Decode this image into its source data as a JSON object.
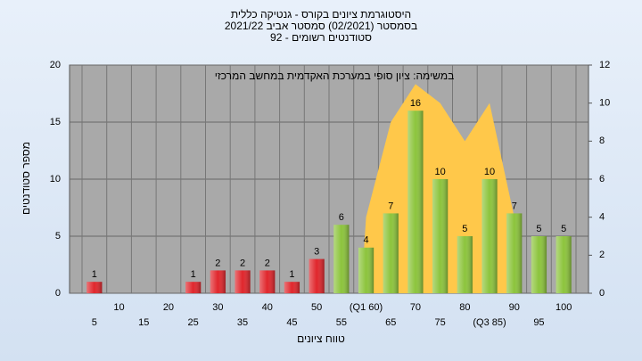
{
  "chart_data": {
    "type": "bar",
    "title": [
      "היסטוגרמת ציונים בקורס - גנטיקה כללית",
      "בסמסטר  (02/2021)  סמסטר אביב 2021/22",
      "סטודנטים רשומים - 92"
    ],
    "annotation": "במשימה: ציון סופי במערכת האקדמית במחשב המרכזי",
    "ylabel": "מספר סטודנטים",
    "xlabel": "טווח ציונים",
    "categories": [
      "5",
      "10",
      "15",
      "20",
      "25",
      "30",
      "35",
      "40",
      "45",
      "50",
      "55",
      "(Q1 60)",
      "65",
      "70",
      "75",
      "80",
      "(Q3 85)",
      "90",
      "95",
      "100"
    ],
    "values": [
      1,
      0,
      0,
      0,
      1,
      2,
      2,
      2,
      1,
      3,
      6,
      4,
      7,
      16,
      10,
      5,
      10,
      7,
      5,
      5
    ],
    "colors": [
      "#e0262c",
      "#e0262c",
      "#e0262c",
      "#e0262c",
      "#e0262c",
      "#e0262c",
      "#e0262c",
      "#e0262c",
      "#e0262c",
      "#e0262c",
      "#8cc43c",
      "#8cc43c",
      "#8cc43c",
      "#8cc43c",
      "#8cc43c",
      "#8cc43c",
      "#8cc43c",
      "#8cc43c",
      "#8cc43c",
      "#8cc43c"
    ],
    "area": {
      "axis": "y2",
      "color": "#ffc84a",
      "values": [
        null,
        null,
        null,
        null,
        null,
        null,
        null,
        null,
        null,
        null,
        null,
        4,
        9,
        11,
        10,
        8,
        10,
        4,
        null,
        null
      ]
    },
    "ylim": [
      0,
      20
    ],
    "yticks": [
      0,
      5,
      10,
      15,
      20
    ],
    "y2lim": [
      0,
      12
    ],
    "y2ticks": [
      0,
      2,
      4,
      6,
      8,
      10,
      12
    ],
    "grid": true
  }
}
